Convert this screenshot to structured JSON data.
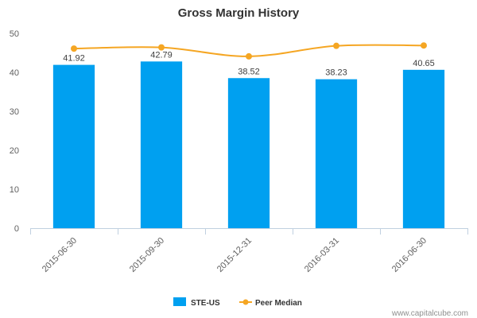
{
  "chart_data": {
    "type": "bar",
    "title": "Gross Margin History",
    "xlabel": "",
    "ylabel": "",
    "ylim": [
      0,
      50
    ],
    "yticks": [
      0,
      10,
      20,
      30,
      40,
      50
    ],
    "categories": [
      "2015-06-30",
      "2015-09-30",
      "2015-12-31",
      "2016-03-31",
      "2016-06-30"
    ],
    "series": [
      {
        "name": "STE-US",
        "kind": "bar",
        "color": "#00a0f0",
        "values": [
          41.92,
          42.79,
          38.52,
          38.23,
          40.65
        ],
        "labels": [
          "41.92",
          "42.79",
          "38.52",
          "38.23",
          "40.65"
        ]
      },
      {
        "name": "Peer Median",
        "kind": "line",
        "color": "#f5a623",
        "values": [
          46.1,
          46.4,
          44.1,
          46.8,
          46.9
        ]
      }
    ],
    "grid": false,
    "legend": "bottom-center"
  },
  "watermark": "www.capitalcube.com"
}
